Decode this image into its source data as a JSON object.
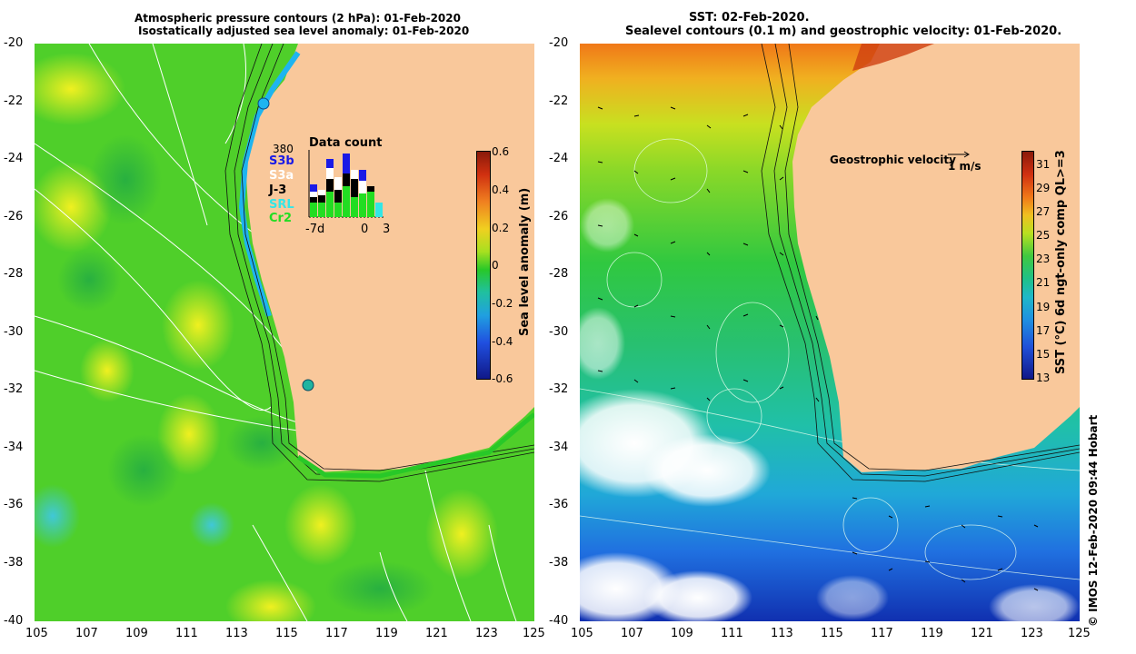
{
  "left_map": {
    "title_line1": "Atmospheric pressure contours (2 hPa): 01-Feb-2020",
    "title_line2": "Isostatically adjusted sea level anomaly: 01-Feb-2020",
    "lat_labels": [
      "-20",
      "-22",
      "-24",
      "-26",
      "-28",
      "-30",
      "-32",
      "-34",
      "-36",
      "-38",
      "-40"
    ],
    "lon_labels": [
      "105",
      "107",
      "109",
      "111",
      "113",
      "115",
      "117",
      "119",
      "121",
      "123",
      "125"
    ],
    "colorbar": {
      "title": "Sea level anomaly (m)",
      "ticks": [
        "0.6",
        "0.4",
        "0.2",
        "0",
        "-0.2",
        "-0.4",
        "-0.6"
      ],
      "range": [
        -0.6,
        0.6
      ]
    },
    "data_count": {
      "title": "Data count",
      "max_label": "380",
      "x_start": "-7d",
      "x_zero": "0",
      "x_end": "3",
      "satellites": [
        {
          "name": "S3b",
          "color": "#1a1ae6"
        },
        {
          "name": "S3a",
          "color": "#ffffff"
        },
        {
          "name": "J-3",
          "color": "#000000"
        },
        {
          "name": "SRL",
          "color": "#33e6e6"
        },
        {
          "name": "Cr2",
          "color": "#22dd22"
        }
      ]
    },
    "stations": [
      "Exmouth marker",
      "Fremantle marker"
    ]
  },
  "right_map": {
    "title_line1": "SST: 02-Feb-2020.",
    "title_line2": "Sealevel contours (0.1 m) and geostrophic velocity: 01-Feb-2020.",
    "lat_labels": [
      "-20",
      "-22",
      "-24",
      "-26",
      "-28",
      "-30",
      "-32",
      "-34",
      "-36",
      "-38",
      "-40"
    ],
    "lon_labels": [
      "105",
      "107",
      "109",
      "111",
      "113",
      "115",
      "117",
      "119",
      "121",
      "123",
      "125"
    ],
    "velocity_label": "Geostrophic velocity",
    "velocity_scale": "1 m/s",
    "colorbar": {
      "title": "SST (°C) 6d ngt-only comp QL>=3",
      "ticks": [
        "31",
        "29",
        "27",
        "25",
        "23",
        "21",
        "19",
        "17",
        "15",
        "13"
      ],
      "range": [
        13,
        32
      ]
    }
  },
  "credit": "© IMOS 12-Feb-2020 09:44 Hobart",
  "colors": {
    "land": "#f9c89b",
    "ocean_green": "#4fcf2a",
    "ocean_yellow": "#c8e61e"
  }
}
